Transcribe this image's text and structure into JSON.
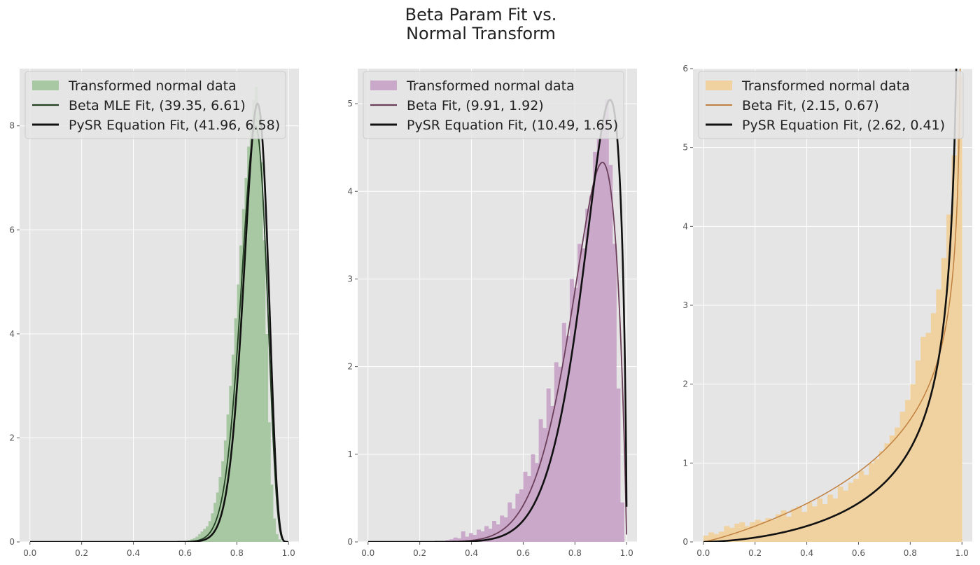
{
  "title_lines": [
    "Beta Param Fit vs.",
    "Normal Transform"
  ],
  "chart_data": [
    {
      "type": "histogram+line",
      "xlim": [
        -0.04,
        1.04
      ],
      "ylim": [
        0,
        9.1
      ],
      "xticks": [
        "0.0",
        "0.2",
        "0.4",
        "0.6",
        "0.8",
        "1.0"
      ],
      "yticks": [
        "0",
        "2",
        "4",
        "6",
        "8"
      ],
      "grid": true,
      "legend_position": "top-left",
      "hist": {
        "label": "Transformed normal data",
        "color": "#a8c8a3",
        "bin_width": 0.01,
        "bin_starts": [
          0.6,
          0.61,
          0.62,
          0.63,
          0.64,
          0.65,
          0.66,
          0.67,
          0.68,
          0.69,
          0.7,
          0.71,
          0.72,
          0.73,
          0.74,
          0.75,
          0.76,
          0.77,
          0.78,
          0.79,
          0.8,
          0.81,
          0.82,
          0.83,
          0.84,
          0.85,
          0.86,
          0.87,
          0.88,
          0.89,
          0.9,
          0.91,
          0.92,
          0.93,
          0.94,
          0.95,
          0.96,
          0.97
        ],
        "heights": [
          0.02,
          0.03,
          0.05,
          0.07,
          0.1,
          0.15,
          0.2,
          0.25,
          0.3,
          0.4,
          0.55,
          0.75,
          0.95,
          1.25,
          1.55,
          1.95,
          2.45,
          3.0,
          3.6,
          4.3,
          4.95,
          5.7,
          6.4,
          7.0,
          7.6,
          8.0,
          8.5,
          8.75,
          8.3,
          7.3,
          5.8,
          4.0,
          2.3,
          1.1,
          0.45,
          0.15,
          0.05,
          0.01
        ]
      },
      "lines": [
        {
          "label": "Beta MLE Fit, (39.35, 6.61)",
          "a": 39.35,
          "b": 6.61,
          "color": "#234023",
          "width": 1.8
        },
        {
          "label": "PySR Equation Fit, (41.96, 6.58)",
          "a": 41.96,
          "b": 6.58,
          "color": "#111111",
          "width": 2.6
        }
      ]
    },
    {
      "type": "histogram+line",
      "xlim": [
        -0.04,
        1.04
      ],
      "ylim": [
        0,
        5.4
      ],
      "xticks": [
        "0.0",
        "0.2",
        "0.4",
        "0.6",
        "0.8",
        "1.0"
      ],
      "yticks": [
        "0",
        "1",
        "2",
        "3",
        "4",
        "5"
      ],
      "grid": true,
      "legend_position": "top-left",
      "hist": {
        "label": "Transformed normal data",
        "color": "#c9a8c9",
        "bin_width": 0.015,
        "bin_starts": [
          0.3,
          0.315,
          0.33,
          0.345,
          0.36,
          0.375,
          0.39,
          0.405,
          0.42,
          0.435,
          0.45,
          0.465,
          0.48,
          0.495,
          0.51,
          0.525,
          0.54,
          0.555,
          0.57,
          0.585,
          0.6,
          0.615,
          0.63,
          0.645,
          0.66,
          0.675,
          0.69,
          0.705,
          0.72,
          0.735,
          0.75,
          0.765,
          0.78,
          0.795,
          0.81,
          0.825,
          0.84,
          0.855,
          0.87,
          0.885,
          0.9,
          0.915,
          0.93,
          0.945,
          0.96,
          0.975
        ],
        "heights": [
          0.02,
          0.03,
          0.05,
          0.04,
          0.12,
          0.06,
          0.1,
          0.08,
          0.14,
          0.12,
          0.18,
          0.15,
          0.24,
          0.2,
          0.3,
          0.28,
          0.45,
          0.38,
          0.55,
          0.6,
          0.8,
          0.75,
          1.0,
          0.9,
          1.4,
          1.3,
          1.75,
          1.55,
          2.05,
          2.0,
          2.5,
          2.35,
          3.0,
          2.9,
          3.4,
          3.35,
          3.8,
          3.95,
          4.45,
          4.6,
          4.75,
          5.05,
          4.3,
          3.4,
          1.75,
          0.45
        ]
      },
      "lines": [
        {
          "label": "Beta Fit, (9.91, 1.92)",
          "a": 9.91,
          "b": 1.92,
          "color": "#6b3f5a",
          "width": 1.8
        },
        {
          "label": "PySR Equation Fit, (10.49, 1.65)",
          "a": 10.49,
          "b": 1.65,
          "color": "#111111",
          "width": 2.6
        }
      ]
    },
    {
      "type": "histogram+line",
      "xlim": [
        -0.04,
        1.04
      ],
      "ylim": [
        0,
        6
      ],
      "xticks": [
        "0.0",
        "0.2",
        "0.4",
        "0.6",
        "0.8",
        "1.0"
      ],
      "yticks": [
        "0",
        "1",
        "2",
        "3",
        "4",
        "5",
        "6"
      ],
      "grid": true,
      "legend_position": "top-left",
      "hist": {
        "label": "Transformed normal data",
        "color": "#f0d2a0",
        "bin_width": 0.02,
        "bin_starts": [
          0.0,
          0.02,
          0.04,
          0.06,
          0.08,
          0.1,
          0.12,
          0.14,
          0.16,
          0.18,
          0.2,
          0.22,
          0.24,
          0.26,
          0.28,
          0.3,
          0.32,
          0.34,
          0.36,
          0.38,
          0.4,
          0.42,
          0.44,
          0.46,
          0.48,
          0.5,
          0.52,
          0.54,
          0.56,
          0.58,
          0.6,
          0.62,
          0.64,
          0.66,
          0.68,
          0.7,
          0.72,
          0.74,
          0.76,
          0.78,
          0.8,
          0.82,
          0.84,
          0.86,
          0.88,
          0.9,
          0.92,
          0.94,
          0.96,
          0.98
        ],
        "heights": [
          0.08,
          0.12,
          0.1,
          0.13,
          0.2,
          0.18,
          0.23,
          0.25,
          0.2,
          0.25,
          0.28,
          0.26,
          0.3,
          0.28,
          0.35,
          0.4,
          0.32,
          0.42,
          0.45,
          0.38,
          0.5,
          0.45,
          0.55,
          0.48,
          0.6,
          0.55,
          0.7,
          0.65,
          0.75,
          0.8,
          0.9,
          0.85,
          1.0,
          1.05,
          1.15,
          1.25,
          1.35,
          1.45,
          1.65,
          1.8,
          2.0,
          2.3,
          2.6,
          2.65,
          2.9,
          3.2,
          3.6,
          4.15,
          4.9,
          5.9
        ]
      },
      "lines": [
        {
          "label": "Beta Fit, (2.15, 0.67)",
          "a": 2.15,
          "b": 0.67,
          "color": "#c08040",
          "width": 1.5
        },
        {
          "label": "PySR Equation Fit, (2.62, 0.41)",
          "a": 2.62,
          "b": 0.41,
          "color": "#111111",
          "width": 2.6
        }
      ]
    }
  ]
}
